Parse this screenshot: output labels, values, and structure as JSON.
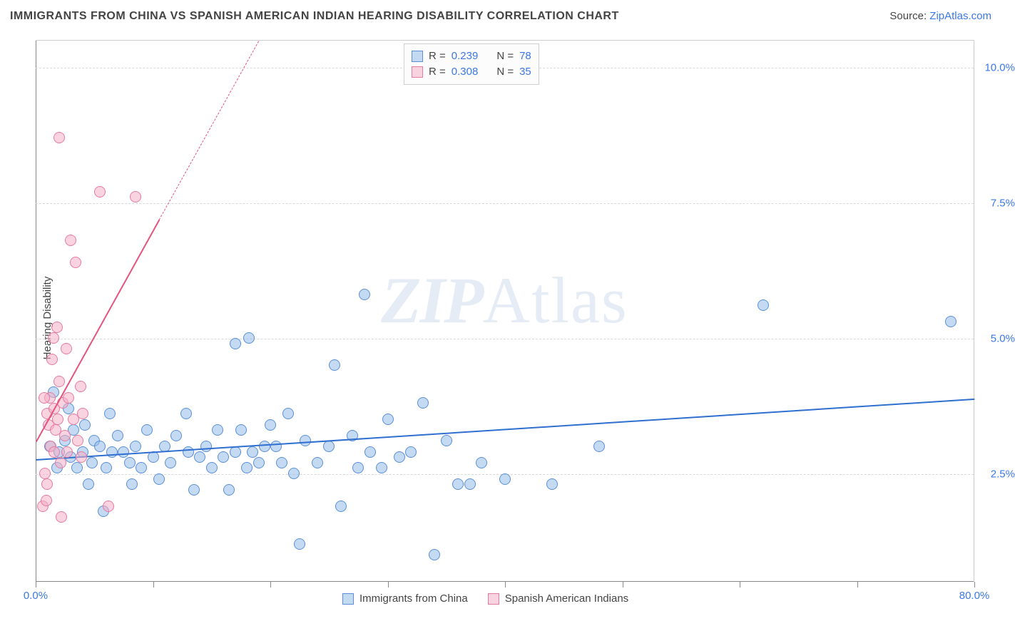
{
  "title": "IMMIGRANTS FROM CHINA VS SPANISH AMERICAN INDIAN HEARING DISABILITY CORRELATION CHART",
  "source_label": "Source:",
  "source_name": "ZipAtlas.com",
  "watermark": {
    "bold": "ZIP",
    "rest": "Atlas"
  },
  "ylabel": "Hearing Disability",
  "chart": {
    "type": "scatter",
    "plot_bg": "#ffffff",
    "grid_color": "#d9d9d9",
    "axis_color": "#888888",
    "x": {
      "min": 0,
      "max": 80,
      "ticks": [
        0,
        10,
        20,
        30,
        40,
        50,
        60,
        70,
        80
      ],
      "labels_shown": {
        "0": "0.0%",
        "80": "80.0%"
      }
    },
    "y": {
      "min": 0.5,
      "max": 10.5,
      "gridlines": [
        2.5,
        5.0,
        7.5,
        10.0
      ],
      "right_labels": {
        "2.5": "2.5%",
        "5.0": "5.0%",
        "7.5": "7.5%",
        "10.0": "10.0%"
      }
    },
    "series": [
      {
        "name": "Immigrants from China",
        "fill": "rgba(148,187,233,0.55)",
        "stroke": "#5a8fd6",
        "marker_r": 8,
        "trend": {
          "color": "#2f6fd0",
          "x1": 0,
          "y1": 2.78,
          "x2": 80,
          "y2": 3.9,
          "dash_extend": false
        },
        "stats": {
          "R": "0.239",
          "N": "78"
        },
        "points": [
          [
            1.2,
            3.0
          ],
          [
            1.5,
            4.0
          ],
          [
            1.8,
            2.6
          ],
          [
            2.0,
            2.9
          ],
          [
            2.5,
            3.1
          ],
          [
            3.0,
            2.8
          ],
          [
            3.2,
            3.3
          ],
          [
            3.5,
            2.6
          ],
          [
            4.0,
            2.9
          ],
          [
            4.2,
            3.4
          ],
          [
            4.8,
            2.7
          ],
          [
            5.0,
            3.1
          ],
          [
            5.5,
            3.0
          ],
          [
            6.0,
            2.6
          ],
          [
            6.5,
            2.9
          ],
          [
            7.0,
            3.2
          ],
          [
            7.5,
            2.9
          ],
          [
            8.0,
            2.7
          ],
          [
            8.5,
            3.0
          ],
          [
            9.0,
            2.6
          ],
          [
            9.5,
            3.3
          ],
          [
            10.0,
            2.8
          ],
          [
            10.5,
            2.4
          ],
          [
            11.0,
            3.0
          ],
          [
            11.5,
            2.7
          ],
          [
            12.0,
            3.2
          ],
          [
            13.0,
            2.9
          ],
          [
            13.5,
            2.2
          ],
          [
            14.0,
            2.8
          ],
          [
            14.5,
            3.0
          ],
          [
            15.0,
            2.6
          ],
          [
            15.5,
            3.3
          ],
          [
            16.0,
            2.8
          ],
          [
            16.5,
            2.2
          ],
          [
            17.0,
            2.9
          ],
          [
            17.5,
            3.3
          ],
          [
            18.0,
            2.6
          ],
          [
            18.5,
            2.9
          ],
          [
            19.0,
            2.7
          ],
          [
            19.5,
            3.0
          ],
          [
            17.0,
            4.9
          ],
          [
            20.0,
            3.4
          ],
          [
            20.5,
            3.0
          ],
          [
            21.0,
            2.7
          ],
          [
            21.5,
            3.6
          ],
          [
            22.0,
            2.5
          ],
          [
            22.5,
            1.2
          ],
          [
            23.0,
            3.1
          ],
          [
            24.0,
            2.7
          ],
          [
            25.0,
            3.0
          ],
          [
            26.0,
            1.9
          ],
          [
            27.0,
            3.2
          ],
          [
            27.5,
            2.6
          ],
          [
            28.0,
            5.8
          ],
          [
            28.5,
            2.9
          ],
          [
            29.5,
            2.6
          ],
          [
            30.0,
            3.5
          ],
          [
            31.0,
            2.8
          ],
          [
            32.0,
            2.9
          ],
          [
            33.0,
            3.8
          ],
          [
            34.0,
            1.0
          ],
          [
            35.0,
            3.1
          ],
          [
            36.0,
            2.3
          ],
          [
            37.0,
            2.3
          ],
          [
            38.0,
            2.7
          ],
          [
            40.0,
            2.4
          ],
          [
            44.0,
            2.3
          ],
          [
            48.0,
            3.0
          ],
          [
            62.0,
            5.6
          ],
          [
            78.0,
            5.3
          ],
          [
            25.5,
            4.5
          ],
          [
            18.2,
            5.0
          ],
          [
            6.3,
            3.6
          ],
          [
            12.8,
            3.6
          ],
          [
            4.5,
            2.3
          ],
          [
            8.2,
            2.3
          ],
          [
            2.8,
            3.7
          ],
          [
            5.8,
            1.8
          ]
        ]
      },
      {
        "name": "Spanish American Indians",
        "fill": "rgba(244,174,196,0.55)",
        "stroke": "#e77aa0",
        "marker_r": 8,
        "trend": {
          "color": "#e3557f",
          "x1": 0,
          "y1": 3.1,
          "x2": 10.5,
          "y2": 7.2,
          "dash_extend": true,
          "dash_x2": 28,
          "dash_y2": 14.0
        },
        "stats": {
          "R": "0.308",
          "N": "35"
        },
        "points": [
          [
            0.6,
            1.9
          ],
          [
            0.8,
            2.5
          ],
          [
            0.9,
            2.0
          ],
          [
            1.0,
            3.6
          ],
          [
            1.1,
            3.4
          ],
          [
            1.2,
            3.9
          ],
          [
            1.3,
            3.0
          ],
          [
            1.4,
            4.6
          ],
          [
            1.5,
            5.0
          ],
          [
            1.6,
            3.7
          ],
          [
            1.7,
            3.3
          ],
          [
            1.8,
            5.2
          ],
          [
            1.9,
            3.5
          ],
          [
            2.0,
            4.2
          ],
          [
            2.1,
            2.7
          ],
          [
            2.2,
            1.7
          ],
          [
            2.3,
            3.8
          ],
          [
            2.5,
            3.2
          ],
          [
            2.6,
            4.8
          ],
          [
            2.8,
            3.9
          ],
          [
            3.0,
            6.8
          ],
          [
            3.2,
            3.5
          ],
          [
            3.4,
            6.4
          ],
          [
            3.6,
            3.1
          ],
          [
            3.8,
            4.1
          ],
          [
            4.0,
            3.6
          ],
          [
            2.0,
            8.7
          ],
          [
            5.5,
            7.7
          ],
          [
            6.2,
            1.9
          ],
          [
            8.5,
            7.6
          ],
          [
            1.0,
            2.3
          ],
          [
            0.7,
            3.9
          ],
          [
            2.7,
            2.9
          ],
          [
            3.9,
            2.8
          ],
          [
            1.6,
            2.9
          ]
        ]
      }
    ]
  },
  "corr_legend": {
    "R_label": "R =",
    "N_label": "N ="
  },
  "bottom_legend": {
    "items": [
      "Immigrants from China",
      "Spanish American Indians"
    ]
  }
}
